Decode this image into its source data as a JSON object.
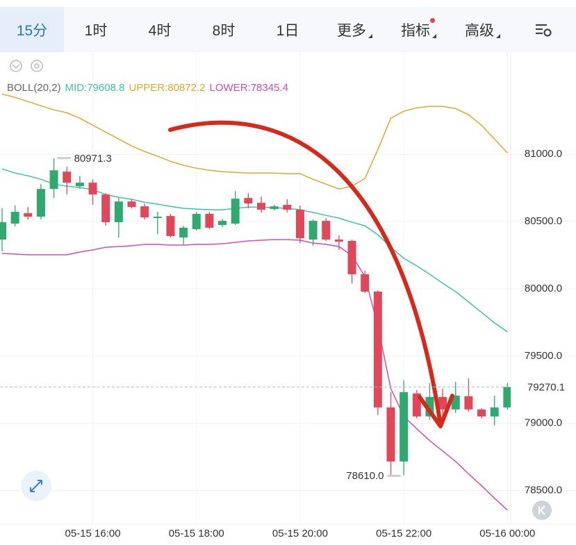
{
  "tabs": [
    "15分",
    "1时",
    "4时",
    "8时",
    "1日",
    "更多",
    "指标",
    "高级"
  ],
  "chart_data": {
    "type": "candlestick",
    "legend_title": "BOLL(20,2)",
    "up_color": "#2eaa6e",
    "down_color": "#e0485a",
    "categories": [
      null,
      null,
      null,
      null,
      null,
      null,
      null,
      "05-15 16:00",
      null,
      null,
      null,
      null,
      null,
      null,
      null,
      "05-15 18:00",
      null,
      null,
      null,
      null,
      null,
      null,
      null,
      "05-15 20:00",
      null,
      null,
      null,
      null,
      null,
      null,
      null,
      "05-15 22:00",
      null,
      null,
      null,
      null,
      null,
      null,
      null,
      "05-16 00:00"
    ],
    "open": [
      80366,
      80485,
      80562,
      80536,
      80742,
      80871,
      80763,
      80789,
      80701,
      80495,
      80649,
      80613,
      80526,
      80541,
      80381,
      80443,
      80557,
      80474,
      80485,
      80675,
      80639,
      80593,
      80624,
      80588,
      80366,
      80505,
      80366,
      80356,
      80108,
      79979,
      79118,
      78716,
      79222,
      79051,
      79196,
      79103,
      79201,
      79103,
      79051,
      79118
    ],
    "high": [
      80598,
      80619,
      80608,
      80778,
      80971.3,
      80907,
      80840,
      80814,
      80711,
      80675,
      80665,
      80634,
      80572,
      80557,
      80469,
      80572,
      80572,
      80521,
      80727,
      80711,
      80686,
      80624,
      80665,
      80619,
      80515,
      80526,
      80397,
      80366,
      80134,
      79990,
      79232,
      79320,
      79247,
      79299,
      79258,
      79309,
      79335,
      79113,
      79206,
      79300
    ],
    "low": [
      80278,
      80464,
      80515,
      80515,
      80675,
      80701,
      80742,
      80624,
      80469,
      80381,
      80598,
      80515,
      80407,
      80381,
      80330,
      80433,
      80443,
      80459,
      80474,
      80598,
      80567,
      80582,
      80567,
      80340,
      80320,
      80356,
      80289,
      80041,
      79969,
      79062,
      78610.0,
      78613,
      79036,
      79026,
      79051,
      79077,
      79087,
      79036,
      78984,
      79100
    ],
    "close": [
      80495,
      80572,
      80536,
      80742,
      80881,
      80789,
      80789,
      80701,
      80495,
      80649,
      80608,
      80531,
      80536,
      80392,
      80454,
      80557,
      80454,
      80505,
      80670,
      80634,
      80588,
      80613,
      80588,
      80376,
      80505,
      80366,
      80350,
      80108,
      79979,
      79118,
      78716,
      79232,
      79051,
      79196,
      79103,
      79206,
      79103,
      79051,
      79118,
      79270.1
    ],
    "bands": [
      {
        "name": "MID:79608.8",
        "color": "#3cc4a4",
        "values": [
          80892,
          80861,
          80840,
          80814,
          80778,
          80763,
          80753,
          80737,
          80701,
          80680,
          80665,
          80644,
          80629,
          80613,
          80598,
          80593,
          80588,
          80588,
          80598,
          80608,
          80608,
          80603,
          80598,
          80588,
          80567,
          80546,
          80526,
          80495,
          80469,
          80402,
          80309,
          80227,
          80170,
          80108,
          80041,
          79979,
          79902,
          79825,
          79747,
          79680
        ]
      },
      {
        "name": "UPPER:80872.2",
        "color": "#e2a72c",
        "values": [
          81448,
          81423,
          81392,
          81361,
          81330,
          81309,
          81268,
          81216,
          81165,
          81113,
          81062,
          81021,
          80985,
          80948,
          80918,
          80897,
          80881,
          80871,
          80866,
          80861,
          80861,
          80861,
          80856,
          80856,
          80814,
          80778,
          80742,
          80763,
          80820,
          81036,
          81268,
          81320,
          81345,
          81356,
          81356,
          81340,
          81294,
          81216,
          81113,
          81010
        ]
      },
      {
        "name": "LOWER:78345.4",
        "color": "#d24cb2",
        "values": [
          80263,
          80258,
          80253,
          80253,
          80253,
          80253,
          80273,
          80289,
          80309,
          80314,
          80320,
          80330,
          80330,
          80325,
          80325,
          80330,
          80330,
          80335,
          80345,
          80356,
          80361,
          80366,
          80366,
          80361,
          80340,
          80330,
          80314,
          80247,
          80093,
          79722,
          79258,
          79051,
          78959,
          78871,
          78794,
          78716,
          78624,
          78536,
          78443,
          78355
        ]
      }
    ],
    "ylim": [
      78250,
      81760
    ],
    "yticks": [
      {
        "value": 78500,
        "label": "78500.0"
      },
      {
        "value": 79000,
        "label": "79000.0"
      },
      {
        "value": 79500,
        "label": "79500.0"
      },
      {
        "value": 80000,
        "label": "80000.0"
      },
      {
        "value": 80500,
        "label": "80500.0"
      },
      {
        "value": 81000,
        "label": "81000.0"
      }
    ],
    "grid": true,
    "high_marker": 80971.3,
    "low_marker": {
      "value": 78610,
      "label": "78610.0"
    },
    "last_price": 79270.1
  }
}
